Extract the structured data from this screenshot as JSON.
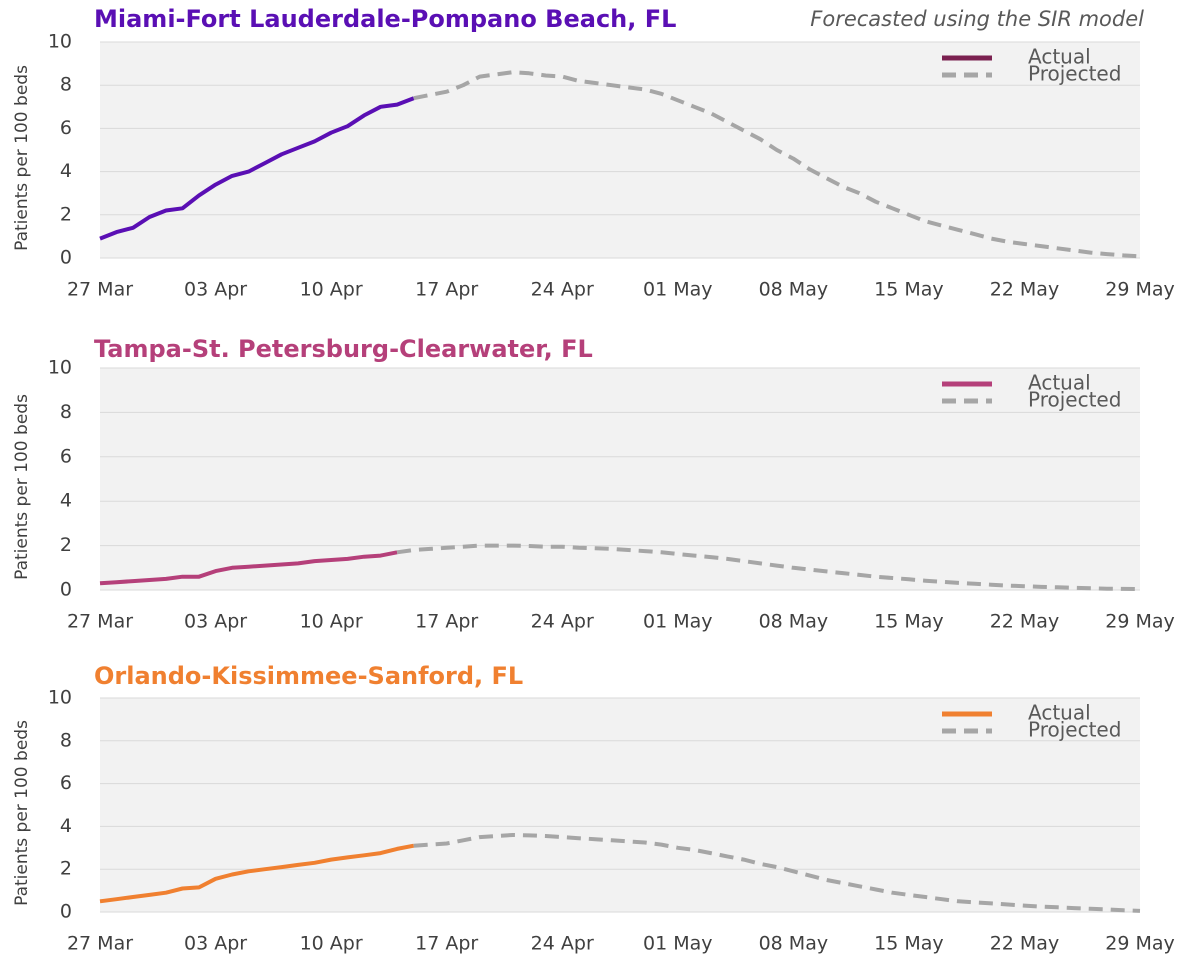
{
  "chart_data": [
    {
      "type": "line",
      "title": "Miami-Fort Lauderdale-Pompano Beach, FL",
      "subtitle": "Forecasted using the SIR model",
      "title_color": "#5a0fb4",
      "y_label": "Patients per 100 beds",
      "categories": [
        "27 Mar",
        null,
        null,
        null,
        null,
        null,
        null,
        "03 Apr",
        null,
        null,
        null,
        null,
        null,
        null,
        "10 Apr",
        null,
        null,
        null,
        null,
        null,
        null,
        "17 Apr",
        null,
        null,
        null,
        null,
        null,
        null,
        "24 Apr",
        null,
        null,
        null,
        null,
        null,
        null,
        "01 May",
        null,
        null,
        null,
        null,
        null,
        null,
        "08 May",
        null,
        null,
        null,
        null,
        null,
        null,
        "15 May",
        null,
        null,
        null,
        null,
        null,
        null,
        "22 May",
        null,
        null,
        null,
        null,
        null,
        null,
        "29 May"
      ],
      "series": [
        {
          "name": "Actual",
          "color": "#5a0fb4",
          "legend_color": "#7b2150",
          "dashed": false,
          "values": [
            0.9,
            1.2,
            1.4,
            1.9,
            2.2,
            2.3,
            2.9,
            3.4,
            3.8,
            4.0,
            4.4,
            4.8,
            5.1,
            5.4,
            5.8,
            6.1,
            6.6,
            7.0,
            7.1,
            7.4,
            null,
            null,
            null,
            null,
            null,
            null,
            null,
            null,
            null,
            null,
            null,
            null,
            null,
            null,
            null,
            null,
            null,
            null,
            null,
            null,
            null,
            null,
            null,
            null,
            null,
            null,
            null,
            null,
            null,
            null,
            null,
            null,
            null,
            null,
            null,
            null,
            null,
            null,
            null,
            null,
            null,
            null,
            null,
            null
          ]
        },
        {
          "name": "Projected",
          "color": "#a6a6a6",
          "dashed": true,
          "values": [
            null,
            null,
            null,
            null,
            null,
            null,
            null,
            null,
            null,
            null,
            null,
            null,
            null,
            null,
            null,
            null,
            null,
            null,
            null,
            7.4,
            7.55,
            7.7,
            8.0,
            8.4,
            8.5,
            8.6,
            8.55,
            8.45,
            8.4,
            8.2,
            8.1,
            8.0,
            7.9,
            7.8,
            7.6,
            7.3,
            7.0,
            6.7,
            6.3,
            5.9,
            5.5,
            5.0,
            4.6,
            4.1,
            3.7,
            3.3,
            3.0,
            2.6,
            2.3,
            2.0,
            1.7,
            1.5,
            1.3,
            1.1,
            0.9,
            0.75,
            0.65,
            0.55,
            0.45,
            0.35,
            0.25,
            0.18,
            0.12,
            0.08
          ]
        }
      ],
      "ylim": [
        0,
        10
      ],
      "yticks": [
        0,
        2,
        4,
        6,
        8,
        10
      ],
      "grid": true,
      "legend": "top-right"
    },
    {
      "type": "line",
      "title": "Tampa-St. Petersburg-Clearwater, FL",
      "title_color": "#b5407a",
      "y_label": "Patients per 100 beds",
      "categories": [
        "27 Mar",
        null,
        null,
        null,
        null,
        null,
        null,
        "03 Apr",
        null,
        null,
        null,
        null,
        null,
        null,
        "10 Apr",
        null,
        null,
        null,
        null,
        null,
        null,
        "17 Apr",
        null,
        null,
        null,
        null,
        null,
        null,
        "24 Apr",
        null,
        null,
        null,
        null,
        null,
        null,
        "01 May",
        null,
        null,
        null,
        null,
        null,
        null,
        "08 May",
        null,
        null,
        null,
        null,
        null,
        null,
        "15 May",
        null,
        null,
        null,
        null,
        null,
        null,
        "22 May",
        null,
        null,
        null,
        null,
        null,
        null,
        "29 May"
      ],
      "series": [
        {
          "name": "Actual",
          "color": "#b5407a",
          "dashed": false,
          "values": [
            0.3,
            0.35,
            0.4,
            0.45,
            0.5,
            0.6,
            0.6,
            0.85,
            1.0,
            1.05,
            1.1,
            1.15,
            1.2,
            1.3,
            1.35,
            1.4,
            1.5,
            1.55,
            1.7,
            null,
            null,
            null,
            null,
            null,
            null,
            null,
            null,
            null,
            null,
            null,
            null,
            null,
            null,
            null,
            null,
            null,
            null,
            null,
            null,
            null,
            null,
            null,
            null,
            null,
            null,
            null,
            null,
            null,
            null,
            null,
            null,
            null,
            null,
            null,
            null,
            null,
            null,
            null,
            null,
            null,
            null,
            null,
            null,
            null
          ]
        },
        {
          "name": "Projected",
          "color": "#a6a6a6",
          "dashed": true,
          "values": [
            null,
            null,
            null,
            null,
            null,
            null,
            null,
            null,
            null,
            null,
            null,
            null,
            null,
            null,
            null,
            null,
            null,
            null,
            1.7,
            1.8,
            1.85,
            1.9,
            1.95,
            2.0,
            2.0,
            2.0,
            1.98,
            1.95,
            1.95,
            1.9,
            1.88,
            1.85,
            1.8,
            1.75,
            1.7,
            1.62,
            1.55,
            1.48,
            1.4,
            1.3,
            1.2,
            1.1,
            1.0,
            0.92,
            0.84,
            0.76,
            0.68,
            0.6,
            0.54,
            0.48,
            0.42,
            0.37,
            0.32,
            0.28,
            0.24,
            0.2,
            0.17,
            0.14,
            0.12,
            0.1,
            0.08,
            0.06,
            0.05,
            0.04
          ]
        }
      ],
      "ylim": [
        0,
        10
      ],
      "yticks": [
        0,
        2,
        4,
        6,
        8,
        10
      ],
      "grid": true,
      "legend": "top-right"
    },
    {
      "type": "line",
      "title": "Orlando-Kissimmee-Sanford, FL",
      "title_color": "#f08030",
      "y_label": "Patients per 100 beds",
      "categories": [
        "27 Mar",
        null,
        null,
        null,
        null,
        null,
        null,
        "03 Apr",
        null,
        null,
        null,
        null,
        null,
        null,
        "10 Apr",
        null,
        null,
        null,
        null,
        null,
        null,
        "17 Apr",
        null,
        null,
        null,
        null,
        null,
        null,
        "24 Apr",
        null,
        null,
        null,
        null,
        null,
        null,
        "01 May",
        null,
        null,
        null,
        null,
        null,
        null,
        "08 May",
        null,
        null,
        null,
        null,
        null,
        null,
        "15 May",
        null,
        null,
        null,
        null,
        null,
        null,
        "22 May",
        null,
        null,
        null,
        null,
        null,
        null,
        "29 May"
      ],
      "series": [
        {
          "name": "Actual",
          "color": "#f08030",
          "dashed": false,
          "values": [
            0.5,
            0.6,
            0.7,
            0.8,
            0.9,
            1.1,
            1.15,
            1.55,
            1.75,
            1.9,
            2.0,
            2.1,
            2.2,
            2.3,
            2.45,
            2.55,
            2.65,
            2.75,
            2.95,
            3.1,
            null,
            null,
            null,
            null,
            null,
            null,
            null,
            null,
            null,
            null,
            null,
            null,
            null,
            null,
            null,
            null,
            null,
            null,
            null,
            null,
            null,
            null,
            null,
            null,
            null,
            null,
            null,
            null,
            null,
            null,
            null,
            null,
            null,
            null,
            null,
            null,
            null,
            null,
            null,
            null,
            null,
            null,
            null,
            null
          ]
        },
        {
          "name": "Projected",
          "color": "#a6a6a6",
          "dashed": true,
          "values": [
            null,
            null,
            null,
            null,
            null,
            null,
            null,
            null,
            null,
            null,
            null,
            null,
            null,
            null,
            null,
            null,
            null,
            null,
            null,
            3.1,
            3.15,
            3.2,
            3.35,
            3.5,
            3.55,
            3.6,
            3.58,
            3.55,
            3.5,
            3.45,
            3.4,
            3.35,
            3.3,
            3.25,
            3.15,
            3.0,
            2.9,
            2.75,
            2.6,
            2.45,
            2.25,
            2.1,
            1.9,
            1.7,
            1.5,
            1.35,
            1.2,
            1.05,
            0.9,
            0.8,
            0.7,
            0.6,
            0.5,
            0.45,
            0.4,
            0.35,
            0.3,
            0.25,
            0.22,
            0.18,
            0.15,
            0.12,
            0.08,
            0.05
          ]
        }
      ],
      "ylim": [
        0,
        10
      ],
      "yticks": [
        0,
        2,
        4,
        6,
        8,
        10
      ],
      "grid": true,
      "legend": "top-right"
    }
  ]
}
